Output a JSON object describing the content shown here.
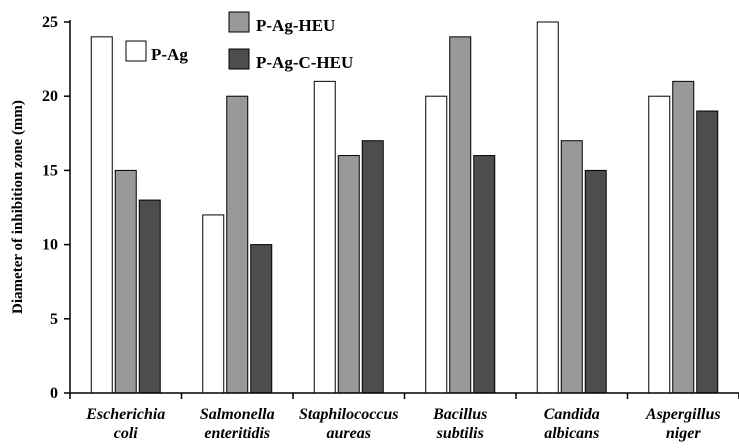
{
  "chart_data": {
    "type": "bar",
    "title": "",
    "xlabel": "",
    "ylabel": "Diameter of inhibition zone (mm)",
    "ylim": [
      0,
      25
    ],
    "yticks": [
      0,
      5,
      10,
      15,
      20,
      25
    ],
    "grid": false,
    "categories": [
      [
        "Escherichia",
        "coli"
      ],
      [
        "Salmonella",
        "enteritidis"
      ],
      [
        "Staphilococcus",
        "aureas"
      ],
      [
        "Bacillus",
        "subtilis"
      ],
      [
        "Candida",
        "albicans"
      ],
      [
        "Aspergillus",
        "niger"
      ]
    ],
    "series": [
      {
        "name": "P-Ag",
        "color": "#ffffff",
        "values": [
          24,
          12,
          21,
          20,
          25,
          20
        ]
      },
      {
        "name": "P-Ag-HEU",
        "color": "#999999",
        "values": [
          15,
          20,
          16,
          24,
          17,
          21
        ]
      },
      {
        "name": "P-Ag-C-HEU",
        "color": "#4d4d4d",
        "values": [
          13,
          10,
          17,
          16,
          15,
          19
        ]
      }
    ],
    "legend": "top-left, inside plot"
  }
}
